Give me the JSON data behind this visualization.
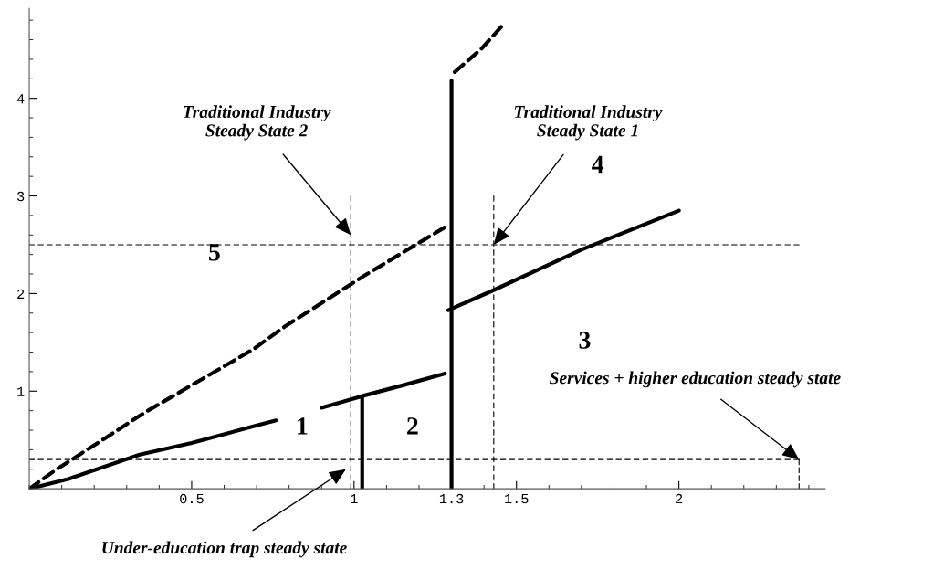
{
  "chart_data": {
    "type": "line",
    "xlim": [
      0,
      2.45
    ],
    "ylim": [
      0,
      4.92
    ],
    "xticks": [
      0.5,
      1,
      {
        "value": 1.3,
        "label": "1.3"
      },
      1.5,
      2
    ],
    "yticks": [
      1,
      2,
      3,
      4
    ],
    "grid": false,
    "marker": "none",
    "series": [
      {
        "color": "#000000",
        "line_style": "solid",
        "x": [
          0,
          0.12,
          0.34,
          0.5,
          0.69,
          0.76,
          null,
          0.9,
          1.025,
          1.15,
          1.28
        ],
        "values": [
          0,
          0.1,
          0.35,
          0.47,
          0.64,
          0.7,
          null,
          0.83,
          0.95,
          1.06,
          1.18
        ]
      },
      {
        "color": "#000000",
        "line_style": "solid",
        "x": [
          1.29,
          1.42,
          1.7,
          2.0
        ],
        "values": [
          1.83,
          2.02,
          2.45,
          2.85
        ]
      },
      {
        "color": "#000000",
        "line_style": "solid",
        "x": [
          1.3,
          1.3
        ],
        "values": [
          0,
          4.18
        ]
      },
      {
        "color": "#000000",
        "line_style": "solid",
        "x": [
          1.025,
          1.025
        ],
        "values": [
          0,
          0.95
        ]
      },
      {
        "color": "#000000",
        "line_style": "dashed",
        "x": [
          0,
          0.08,
          0.36,
          0.69,
          0.79,
          1.04,
          1.24,
          1.28,
          null,
          1.31,
          1.39,
          1.455
        ],
        "values": [
          0,
          0.19,
          0.79,
          1.43,
          1.67,
          2.2,
          2.6,
          2.68,
          null,
          4.27,
          4.5,
          4.74
        ]
      },
      {
        "color": "#000000",
        "line_style": "dashed",
        "x": [
          0,
          2.37
        ],
        "values": [
          2.5,
          2.5
        ]
      },
      {
        "color": "#000000",
        "line_style": "dashed",
        "x": [
          0,
          2.37
        ],
        "values": [
          0.3,
          0.3
        ]
      },
      {
        "color": "#000000",
        "line_style": "dashed",
        "x": [
          0.99,
          0.99
        ],
        "values": [
          0,
          3.0
        ]
      },
      {
        "color": "#000000",
        "line_style": "dashed",
        "x": [
          1.43,
          1.43
        ],
        "values": [
          0,
          3.0
        ]
      },
      {
        "color": "#000000",
        "line_style": "dashed",
        "x": [
          2.37,
          2.37
        ],
        "values": [
          0,
          0.3
        ]
      }
    ],
    "annotations": [
      "1",
      "2",
      "3",
      "4",
      "5",
      {
        "text": "Traditional Industry\nSteady State 2",
        "x": 0.99,
        "y": 2.6
      },
      {
        "text": "Traditional Industry\nSteady State 1",
        "x": 1.43,
        "y": 2.5
      },
      {
        "text": "Services + higher education steady state",
        "x": 2.37,
        "y": 0.3
      },
      "Under-education trap steady state"
    ]
  }
}
